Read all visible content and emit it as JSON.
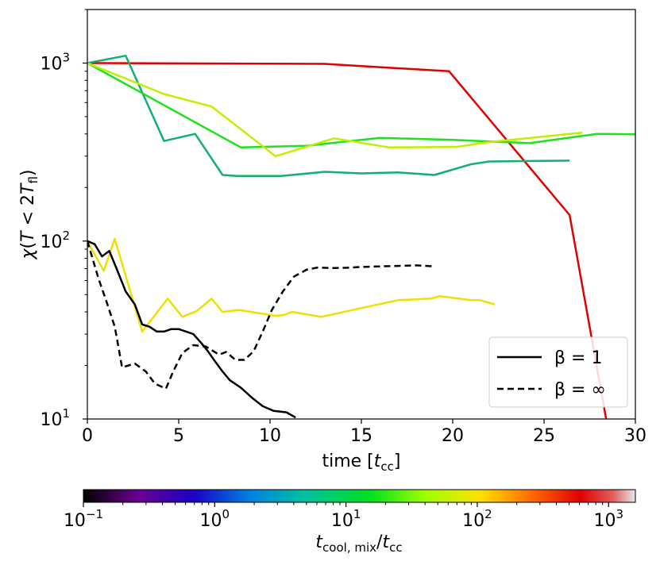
{
  "chart_data": {
    "type": "line",
    "xlabel": "time [t_cc]",
    "xlabel_parts": {
      "main": "time [",
      "var": "t",
      "sub": "cc",
      "end": "]"
    },
    "ylabel": "χ(T < 2T_fl)",
    "ylabel_parts": {
      "chi": "χ",
      "open": "(",
      "T1": "T",
      "lt": " < 2",
      "T2": "T",
      "sub": "fl",
      "close": ")"
    },
    "xlim": [
      0,
      30
    ],
    "ylim": [
      10,
      2000
    ],
    "yscale": "log",
    "x_ticks": [
      {
        "value": 0,
        "label": "0"
      },
      {
        "value": 5,
        "label": "5"
      },
      {
        "value": 10,
        "label": "10"
      },
      {
        "value": 15,
        "label": "15"
      },
      {
        "value": 20,
        "label": "20"
      },
      {
        "value": 25,
        "label": "25"
      },
      {
        "value": 30,
        "label": "30"
      }
    ],
    "y_ticks": [
      {
        "value": 10,
        "base": "10",
        "exp": "1"
      },
      {
        "value": 100,
        "base": "10",
        "exp": "2"
      },
      {
        "value": 1000,
        "base": "10",
        "exp": "3"
      }
    ],
    "legend": {
      "position": "lower right",
      "entries": [
        {
          "label": "β = 1",
          "style": "solid"
        },
        {
          "label": "β = ∞",
          "style": "dashed"
        }
      ]
    },
    "series": [
      {
        "name": "red-solid",
        "color": "#e00000",
        "style": "solid",
        "x": [
          0,
          13,
          19.8,
          26.4,
          28.4
        ],
        "y": [
          1000,
          990,
          900,
          140,
          10
        ]
      },
      {
        "name": "teal-solid",
        "color": "#10b070",
        "style": "solid",
        "x": [
          0,
          2.1,
          4.2,
          5.9,
          7.4,
          8.2,
          10.6,
          13,
          15,
          17,
          19,
          21,
          22,
          26.4
        ],
        "y": [
          1000,
          1100,
          365,
          400,
          235,
          232,
          232,
          245,
          240,
          243,
          235,
          270,
          280,
          283
        ]
      },
      {
        "name": "green-solid",
        "color": "#20e020",
        "style": "solid",
        "x": [
          0,
          8.4,
          12,
          16,
          20,
          24.2,
          27.9,
          30
        ],
        "y": [
          1000,
          336,
          343,
          380,
          370,
          355,
          400,
          398
        ]
      },
      {
        "name": "lime-solid",
        "color": "#c0f000",
        "style": "solid",
        "x": [
          0,
          4.2,
          6.8,
          10.3,
          13.5,
          16.5,
          20.2,
          22,
          27.1
        ],
        "y": [
          1000,
          670,
          570,
          300,
          378,
          336,
          338,
          360,
          407
        ]
      },
      {
        "name": "yellow-solid",
        "color": "#f0e000",
        "style": "solid",
        "x": [
          0,
          0.9,
          1.5,
          3,
          4.4,
          5.2,
          6,
          6.8,
          7.4,
          8.3,
          10.3,
          10.8,
          11.2,
          12.8,
          15,
          17,
          18.8,
          19.3,
          21,
          21.5,
          22.3
        ],
        "y": [
          100,
          68,
          103,
          31,
          47.5,
          37.5,
          40.5,
          47.5,
          40,
          41,
          38,
          38.5,
          40,
          37.5,
          42,
          46.5,
          47.5,
          49,
          46.5,
          46.5,
          44
        ]
      },
      {
        "name": "black-solid",
        "color": "#000000",
        "style": "solid",
        "x": [
          0,
          0.4,
          0.8,
          1.2,
          1.6,
          2.1,
          2.6,
          3,
          3.4,
          3.8,
          4.2,
          4.6,
          5,
          5.4,
          5.8,
          6.2,
          6.6,
          7,
          7.4,
          7.8,
          8.4,
          9,
          9.6,
          10.2,
          10.9,
          11.4
        ],
        "y": [
          100,
          96,
          82,
          88,
          70,
          52,
          44,
          34,
          33,
          31,
          31,
          32,
          32,
          31,
          30,
          27,
          24,
          21,
          18.5,
          16.5,
          15,
          13.2,
          11.8,
          11.1,
          10.9,
          10.2
        ]
      },
      {
        "name": "black-dashed",
        "color": "#000000",
        "style": "dashed",
        "x": [
          0,
          0.6,
          1.1,
          1.5,
          1.9,
          2.6,
          3.2,
          3.7,
          4.3,
          4.7,
          5.2,
          5.8,
          6.5,
          7.2,
          7.6,
          8.1,
          8.6,
          9.1,
          9.6,
          10.1,
          10.7,
          11.3,
          12,
          12.6,
          13.4,
          14.2,
          15,
          16,
          17,
          18,
          19
        ],
        "y": [
          100,
          62,
          44,
          33,
          19.5,
          20.5,
          18.5,
          15.8,
          14.8,
          18.5,
          23.5,
          26,
          25.5,
          23,
          23.8,
          21.5,
          21.5,
          24,
          31,
          41,
          52,
          63,
          69,
          71,
          70.5,
          70.8,
          71.5,
          72,
          72.5,
          73,
          72
        ]
      }
    ],
    "colorbar": {
      "label_parts": {
        "var": "t",
        "sub": "cool, mix",
        "slash": "/",
        "var2": "t",
        "sub2": "cc"
      },
      "range": [
        0.1,
        1600
      ],
      "scale": "log",
      "ticks": [
        {
          "value": 0.1,
          "base": "10",
          "exp": "−1"
        },
        {
          "value": 1,
          "base": "10",
          "exp": "0"
        },
        {
          "value": 10,
          "base": "10",
          "exp": "1"
        },
        {
          "value": 100,
          "base": "10",
          "exp": "2"
        },
        {
          "value": 1000,
          "base": "10",
          "exp": "3"
        }
      ],
      "stops": [
        {
          "frac": 0.0,
          "color": "#000000"
        },
        {
          "frac": 0.1,
          "color": "#6a0090"
        },
        {
          "frac": 0.2,
          "color": "#1a00c8"
        },
        {
          "frac": 0.3,
          "color": "#0080e0"
        },
        {
          "frac": 0.4,
          "color": "#00c0a0"
        },
        {
          "frac": 0.52,
          "color": "#00e020"
        },
        {
          "frac": 0.62,
          "color": "#a0ff00"
        },
        {
          "frac": 0.72,
          "color": "#ffe000"
        },
        {
          "frac": 0.82,
          "color": "#ff6000"
        },
        {
          "frac": 0.9,
          "color": "#e00000"
        },
        {
          "frac": 0.96,
          "color": "#e06060"
        },
        {
          "frac": 1.0,
          "color": "#e8e8e8"
        }
      ]
    }
  }
}
